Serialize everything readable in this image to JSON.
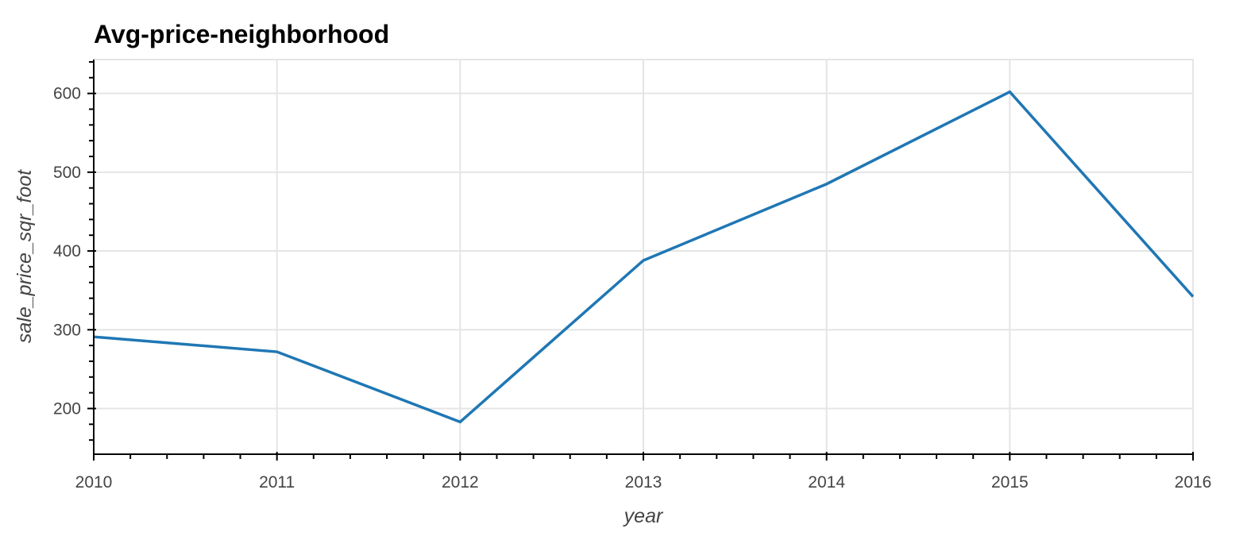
{
  "chart_data": {
    "type": "line",
    "title": "Avg-price-neighborhood",
    "xlabel": "year",
    "ylabel": "sale_price_sqr_foot",
    "x": [
      2010,
      2011,
      2012,
      2013,
      2014,
      2015,
      2016
    ],
    "series": [
      {
        "values": [
          291,
          272,
          183,
          388,
          485,
          602,
          342
        ],
        "color": "#1f77b4"
      }
    ],
    "xlim": [
      2010,
      2016
    ],
    "ylim": [
      142,
      643
    ],
    "x_ticks": [
      2010,
      2011,
      2012,
      2013,
      2014,
      2015,
      2016
    ],
    "y_ticks": [
      200,
      300,
      400,
      500,
      600
    ],
    "grid": true,
    "colors": {
      "line": "#1f77b4",
      "grid": "#e5e5e5",
      "axis": "#000000",
      "tick_text": "#444444",
      "title": "#000000"
    }
  }
}
